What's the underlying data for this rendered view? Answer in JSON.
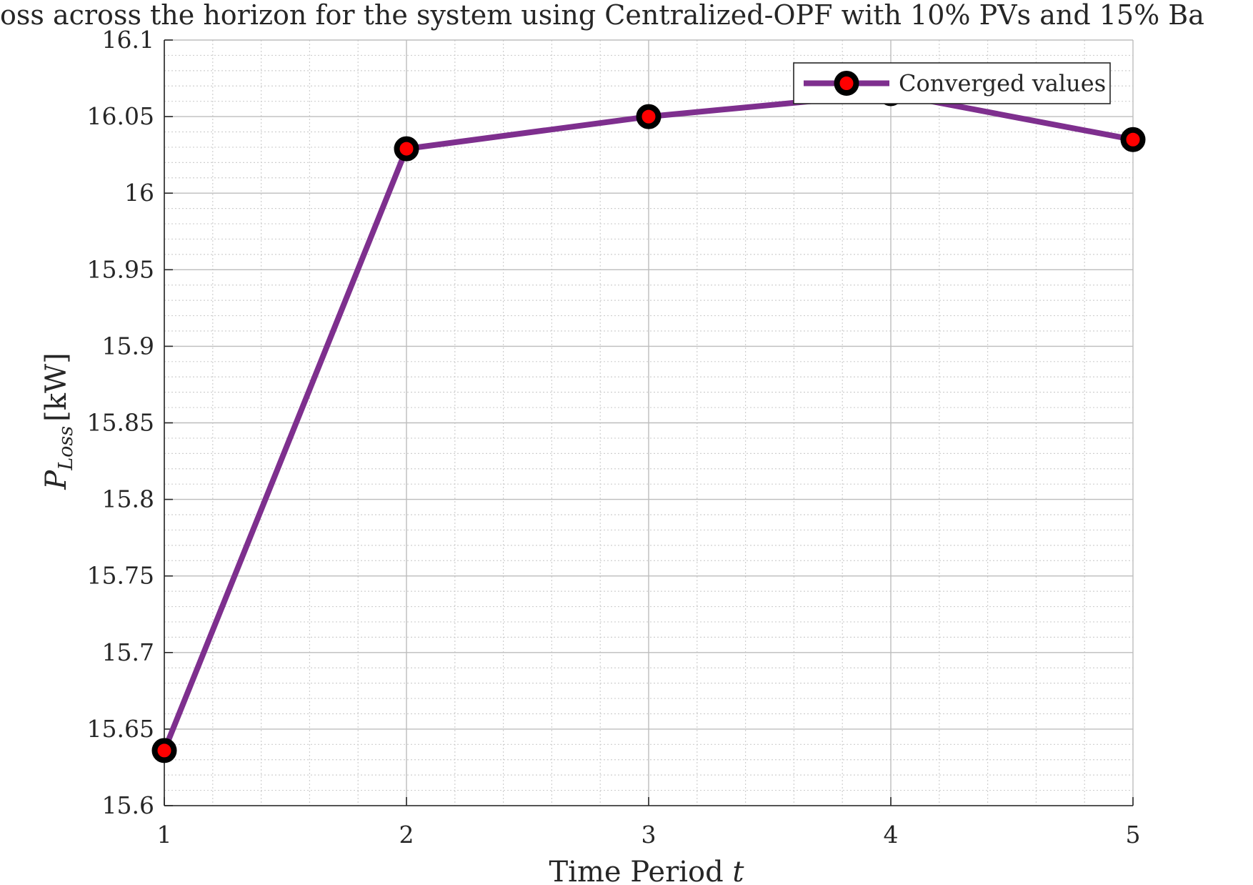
{
  "chart_data": {
    "type": "line",
    "title": "oss across the horizon for the system using Centralized-OPF with 10% PVs and 15% Ba",
    "xlabel": "Time Period t",
    "ylabel": "P_Loss [kW]",
    "ylabel_main": "P",
    "ylabel_sub": "Loss",
    "ylabel_unit": "[kW]",
    "xlim": [
      1,
      5
    ],
    "ylim": [
      15.6,
      16.1
    ],
    "x_ticks": [
      "1",
      "2",
      "3",
      "4",
      "5"
    ],
    "y_ticks": [
      "15.6",
      "15.65",
      "15.7",
      "15.75",
      "15.8",
      "15.85",
      "15.9",
      "15.95",
      "16",
      "16.05",
      "16.1"
    ],
    "x_tick_values": [
      1,
      2,
      3,
      4,
      5
    ],
    "y_tick_values": [
      15.6,
      15.65,
      15.7,
      15.75,
      15.8,
      15.85,
      15.9,
      15.95,
      16.0,
      16.05,
      16.1
    ],
    "grid": true,
    "minor_grid": true,
    "legend_position": "top-right",
    "series": [
      {
        "name": "Converged values",
        "color": "#7e2f8e",
        "marker_edge_color": "#000000",
        "marker_face_color": "#ff0000",
        "x": [
          1,
          2,
          3,
          4,
          5
        ],
        "y": [
          15.636,
          16.029,
          16.05,
          16.065,
          16.035
        ]
      }
    ]
  }
}
